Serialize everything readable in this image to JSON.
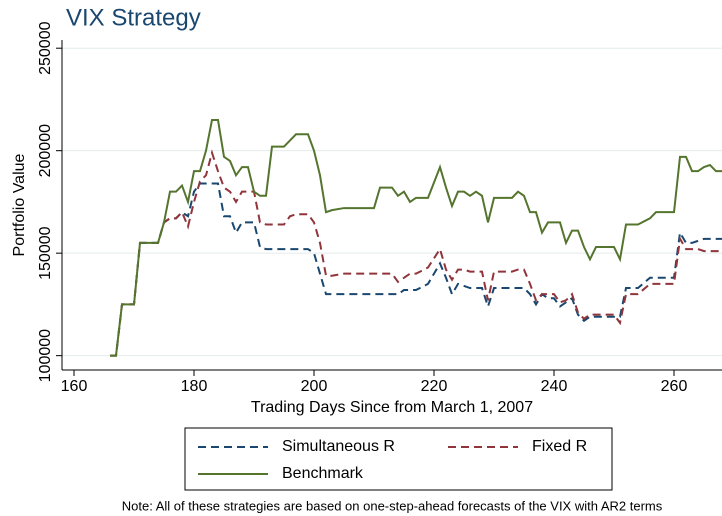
{
  "chart_data": {
    "type": "line",
    "title": "VIX Strategy",
    "x_label": "Trading Days Since from March 1, 2007",
    "y_label": "Portfolio Value",
    "note": "Note: All of these strategies are based on one-step-ahead forecasts of the VIX with AR2 terms",
    "xlim": [
      158,
      268
    ],
    "ylim": [
      93000,
      254000
    ],
    "xticks": [
      160,
      180,
      200,
      220,
      240,
      260
    ],
    "yticks": [
      100000,
      150000,
      200000,
      250000
    ],
    "grid": true,
    "x": [
      166,
      167,
      168,
      170,
      171,
      172,
      174,
      175,
      176,
      177,
      178,
      179,
      180,
      181,
      182,
      183,
      184,
      185,
      186,
      187,
      188,
      189,
      190,
      191,
      192,
      193,
      194,
      195,
      196,
      197,
      198,
      199,
      200,
      201,
      202,
      203,
      205,
      210,
      211,
      213,
      214,
      215,
      216,
      217,
      219,
      221,
      222,
      223,
      224,
      225,
      226,
      227,
      228,
      229,
      230,
      232,
      233,
      234,
      235,
      236,
      237,
      238,
      239,
      240,
      241,
      242,
      243,
      244,
      245,
      246,
      247,
      248,
      249,
      250,
      251,
      252,
      253,
      254,
      256,
      257,
      260,
      261,
      262,
      263,
      264,
      265,
      266,
      267,
      268
    ],
    "series": [
      {
        "name": "Simultaneous R",
        "color": "#1a476f",
        "dash": "8,5",
        "values": [
          100000,
          100000,
          125000,
          125000,
          155000,
          155000,
          155000,
          165000,
          167000,
          167000,
          170000,
          168000,
          180000,
          184000,
          184000,
          184000,
          184000,
          168000,
          168000,
          160000,
          165000,
          165000,
          165000,
          153000,
          152000,
          152000,
          152000,
          152000,
          152000,
          152000,
          152000,
          152000,
          150000,
          140000,
          130000,
          130000,
          130000,
          130000,
          130000,
          130000,
          130000,
          132000,
          132000,
          132000,
          135000,
          145000,
          138000,
          130000,
          135000,
          134000,
          133000,
          133000,
          133000,
          124000,
          133000,
          133000,
          133000,
          133000,
          133000,
          130000,
          125000,
          130000,
          128000,
          128000,
          124000,
          126000,
          128000,
          120000,
          117000,
          119000,
          119000,
          119000,
          119000,
          119000,
          119000,
          133000,
          133000,
          133000,
          138000,
          138000,
          138000,
          160000,
          155000,
          155000,
          156000,
          157000,
          157000,
          157000,
          157000
        ]
      },
      {
        "name": "Fixed R",
        "color": "#90353b",
        "dash": "8,5",
        "values": [
          100000,
          100000,
          125000,
          125000,
          155000,
          155000,
          155000,
          165000,
          167000,
          167000,
          170000,
          163000,
          175000,
          185000,
          188000,
          199000,
          190000,
          182000,
          180000,
          175000,
          180000,
          180000,
          180000,
          165000,
          164000,
          164000,
          164000,
          164000,
          168000,
          169000,
          169000,
          169000,
          165000,
          155000,
          139000,
          139000,
          140000,
          140000,
          140000,
          140000,
          136000,
          138000,
          140000,
          140000,
          143000,
          152000,
          142000,
          137000,
          142000,
          142000,
          141000,
          141000,
          141000,
          127000,
          141000,
          141000,
          141000,
          142000,
          142000,
          135000,
          127000,
          130000,
          130000,
          130000,
          126000,
          127000,
          130000,
          121000,
          118000,
          120000,
          120000,
          120000,
          120000,
          120000,
          116000,
          130000,
          130000,
          130000,
          135000,
          135000,
          135000,
          157000,
          152000,
          152000,
          152000,
          151000,
          151000,
          151000,
          151000
        ]
      },
      {
        "name": "Benchmark",
        "color": "#55752f",
        "dash": "none",
        "values": [
          100000,
          100000,
          125000,
          125000,
          155000,
          155000,
          155000,
          165000,
          180000,
          180000,
          183000,
          175000,
          190000,
          190000,
          200000,
          215000,
          215000,
          197000,
          195000,
          188000,
          192000,
          192000,
          180000,
          178000,
          178000,
          202000,
          202000,
          202000,
          205000,
          208000,
          208000,
          208000,
          200000,
          188000,
          170000,
          171000,
          172000,
          172000,
          182000,
          182000,
          178000,
          180000,
          175000,
          177000,
          177000,
          192000,
          182000,
          173000,
          180000,
          180000,
          178000,
          180000,
          178000,
          165000,
          177000,
          177000,
          177000,
          180000,
          178000,
          170000,
          170000,
          160000,
          165000,
          165000,
          165000,
          155000,
          161000,
          161000,
          153000,
          147000,
          153000,
          153000,
          153000,
          153000,
          147000,
          164000,
          164000,
          164000,
          167000,
          170000,
          170000,
          197000,
          197000,
          190000,
          190000,
          192000,
          193000,
          190000,
          190000
        ]
      }
    ]
  }
}
